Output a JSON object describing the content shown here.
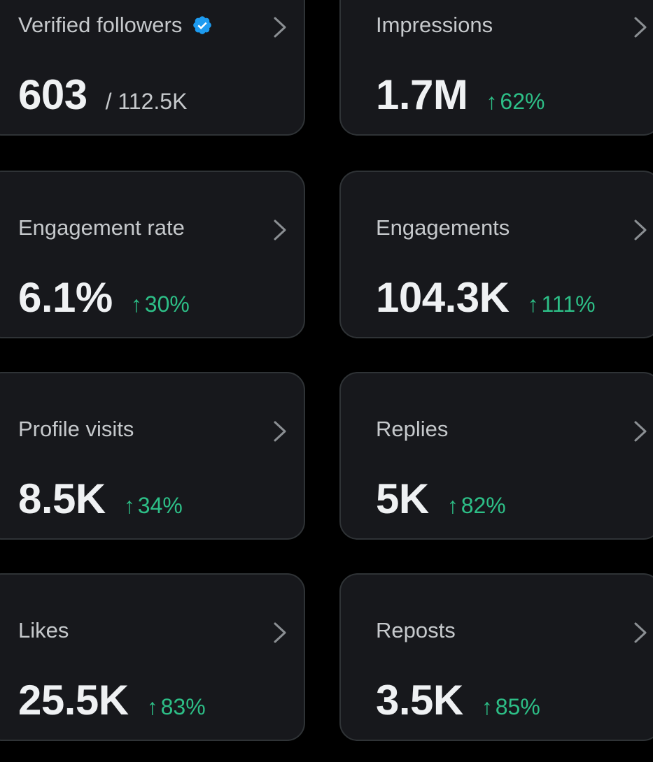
{
  "colors": {
    "background": "#000000",
    "card": "#17181c",
    "border": "#2f3336",
    "label": "#c6c9cc",
    "value": "#eff1f3",
    "positive": "#2dbf87",
    "verified": "#1d9bf0"
  },
  "icons": {
    "verified": "verified-badge-icon",
    "chevron": "chevron-right-icon",
    "up": "arrow-up-icon"
  },
  "metrics": {
    "verified_followers": {
      "label": "Verified followers",
      "value": "603",
      "suffix": "/ 112.5K"
    },
    "impressions": {
      "label": "Impressions",
      "value": "1.7M",
      "arrow": "↑",
      "change": "62%"
    },
    "engagement_rate": {
      "label": "Engagement rate",
      "value": "6.1%",
      "arrow": "↑",
      "change": "30%"
    },
    "engagements": {
      "label": "Engagements",
      "value": "104.3K",
      "arrow": "↑",
      "change": "111%"
    },
    "profile_visits": {
      "label": "Profile visits",
      "value": "8.5K",
      "arrow": "↑",
      "change": "34%"
    },
    "replies": {
      "label": "Replies",
      "value": "5K",
      "arrow": "↑",
      "change": "82%"
    },
    "likes": {
      "label": "Likes",
      "value": "25.5K",
      "arrow": "↑",
      "change": "83%"
    },
    "reposts": {
      "label": "Reposts",
      "value": "3.5K",
      "arrow": "↑",
      "change": "85%"
    }
  }
}
